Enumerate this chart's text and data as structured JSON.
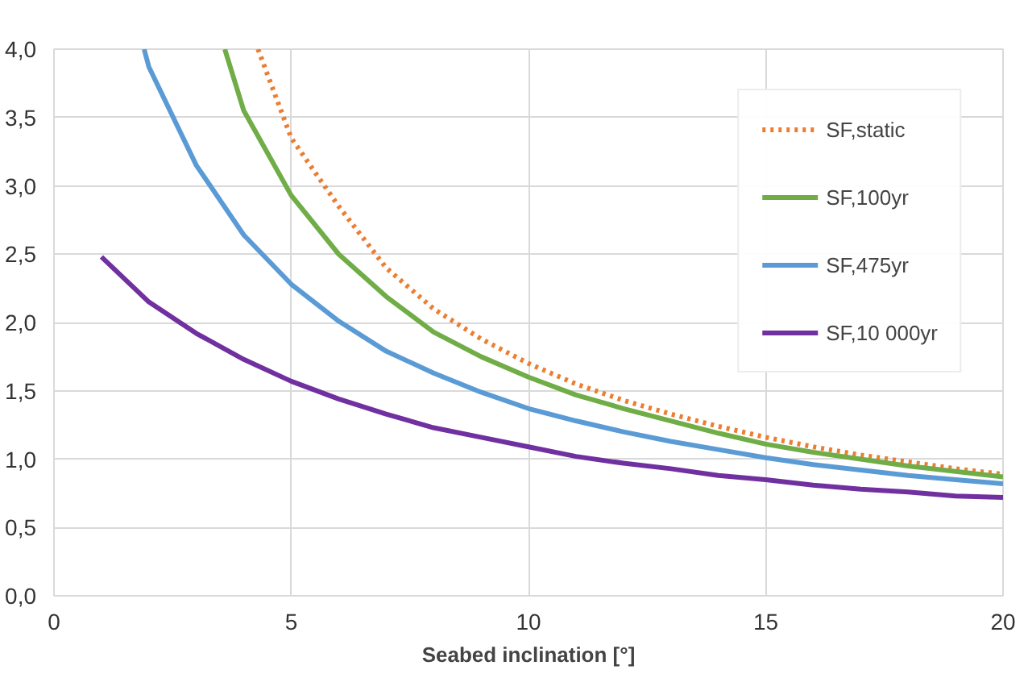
{
  "chart_data": {
    "type": "line",
    "xlabel": "Seabed inclination [°]",
    "xlim": [
      0,
      20
    ],
    "xticks": [
      0,
      5,
      10,
      15,
      20
    ],
    "ylim": [
      0,
      4
    ],
    "yticks": [
      {
        "value": 0,
        "label": "0,0"
      },
      {
        "value": 0.5,
        "label": "0,5"
      },
      {
        "value": 1,
        "label": "1,0"
      },
      {
        "value": 1.5,
        "label": "1,5"
      },
      {
        "value": 2,
        "label": "2,0"
      },
      {
        "value": 2.5,
        "label": "2,5"
      },
      {
        "value": 3,
        "label": "3,0"
      },
      {
        "value": 3.5,
        "label": "3,5"
      },
      {
        "value": 4,
        "label": "4,0"
      }
    ],
    "grid": true,
    "legend": "top right",
    "marker": "none",
    "series": [
      {
        "name": "SF,static",
        "color": "#ed7d31",
        "line_style": "dotted",
        "x": [
          4.3,
          5,
          6,
          7,
          8,
          9,
          10,
          11,
          12,
          13,
          14,
          15,
          16,
          17,
          18,
          19,
          20
        ],
        "values": [
          4.0,
          3.35,
          2.85,
          2.4,
          2.1,
          1.88,
          1.7,
          1.55,
          1.43,
          1.33,
          1.24,
          1.16,
          1.09,
          1.03,
          0.98,
          0.93,
          0.89
        ]
      },
      {
        "name": "SF,100yr",
        "color": "#70ad47",
        "line_style": "solid",
        "x": [
          3.6,
          4,
          5,
          6,
          7,
          8,
          9,
          10,
          11,
          12,
          13,
          14,
          15,
          16,
          17,
          18,
          19,
          20
        ],
        "values": [
          4.0,
          3.55,
          2.93,
          2.5,
          2.19,
          1.93,
          1.75,
          1.6,
          1.47,
          1.37,
          1.28,
          1.19,
          1.11,
          1.05,
          1.0,
          0.95,
          0.91,
          0.87
        ]
      },
      {
        "name": "SF,475yr",
        "color": "#5b9bd5",
        "line_style": "solid",
        "x": [
          1.9,
          2,
          3,
          4,
          5,
          6,
          7,
          8,
          9,
          10,
          11,
          12,
          13,
          14,
          15,
          16,
          17,
          18,
          19,
          20
        ],
        "values": [
          4.0,
          3.87,
          3.15,
          2.64,
          2.28,
          2.01,
          1.79,
          1.63,
          1.49,
          1.37,
          1.28,
          1.2,
          1.13,
          1.07,
          1.01,
          0.96,
          0.92,
          0.88,
          0.85,
          0.82
        ]
      },
      {
        "name": "SF,10 000yr",
        "color": "#7030a0",
        "line_style": "solid",
        "x": [
          1,
          2,
          3,
          4,
          5,
          6,
          7,
          8,
          9,
          10,
          11,
          12,
          13,
          14,
          15,
          16,
          17,
          18,
          19,
          20
        ],
        "values": [
          2.48,
          2.15,
          1.92,
          1.73,
          1.57,
          1.44,
          1.33,
          1.23,
          1.16,
          1.09,
          1.02,
          0.97,
          0.93,
          0.88,
          0.85,
          0.81,
          0.78,
          0.76,
          0.73,
          0.72
        ]
      }
    ]
  }
}
